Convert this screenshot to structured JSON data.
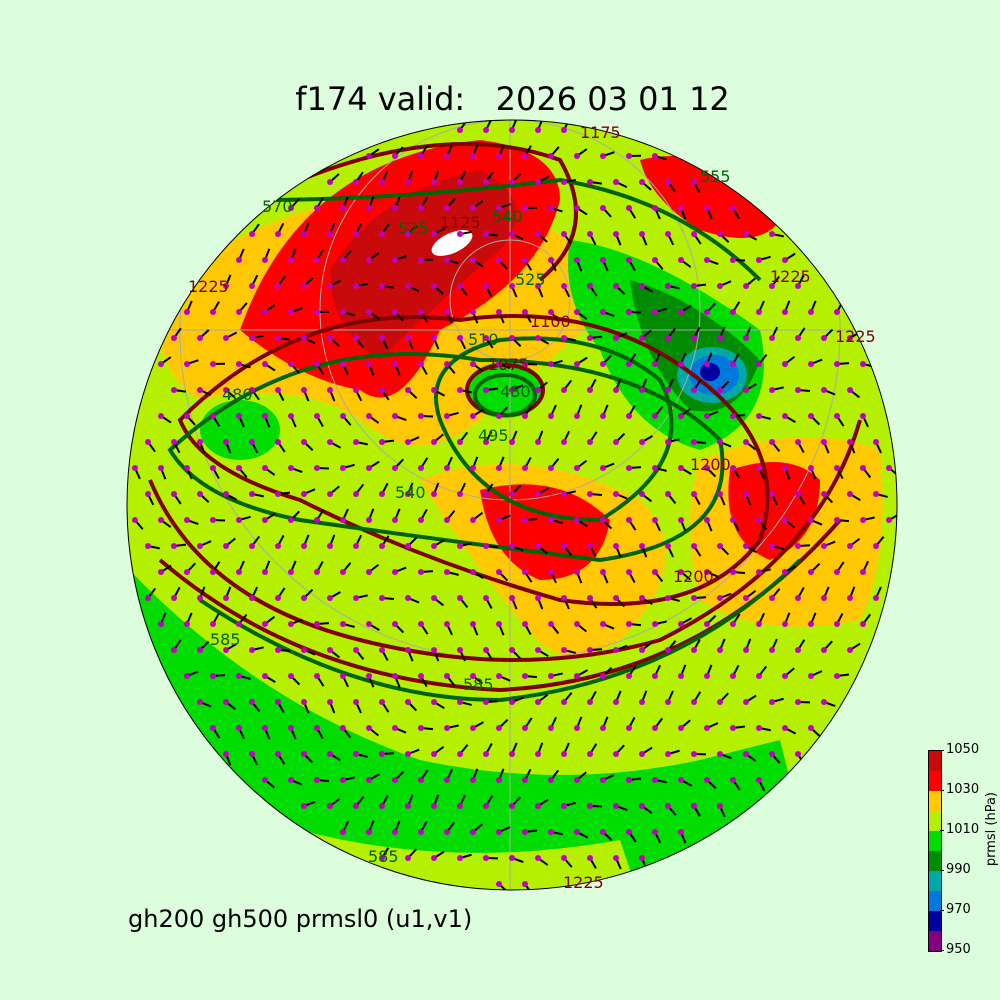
{
  "title": "f174 valid:   2026 03 01 12",
  "subtitle": "gh200 gh500 prmsl0 (u1,v1)",
  "colorbar": {
    "label": "prmsl (hPa)",
    "ticks": [
      "950",
      "970",
      "990",
      "1010",
      "1030",
      "1050"
    ],
    "levels": [
      950,
      960,
      970,
      980,
      990,
      1000,
      1010,
      1020,
      1030,
      1040,
      1050
    ],
    "colors": [
      "#800080",
      "#0000a0",
      "#0078dc",
      "#00a8a8",
      "#008c00",
      "#00dc00",
      "#b4f000",
      "#ffc800",
      "#ff0000",
      "#c80a0a"
    ]
  },
  "map": {
    "projection": "orthographic",
    "background": "#ddfedd",
    "gh200_color": "#800000",
    "gh500_color": "#006400",
    "wind_point_color": "#c000c0",
    "contour_labels": [
      {
        "text": "1175",
        "type": "gh200"
      },
      {
        "text": "555",
        "type": "gh500"
      },
      {
        "text": "570",
        "type": "gh500"
      },
      {
        "text": "1225",
        "type": "gh200"
      },
      {
        "text": "525",
        "type": "gh500"
      },
      {
        "text": "1125",
        "type": "gh200"
      },
      {
        "text": "540",
        "type": "gh500"
      },
      {
        "text": "525",
        "type": "gh500"
      },
      {
        "text": "1100",
        "type": "gh200"
      },
      {
        "text": "510",
        "type": "gh500"
      },
      {
        "text": "1075",
        "type": "gh200"
      },
      {
        "text": "480",
        "type": "gh500"
      },
      {
        "text": "495",
        "type": "gh500"
      },
      {
        "text": "1225",
        "type": "gh200"
      },
      {
        "text": "1225",
        "type": "gh200"
      },
      {
        "text": "480",
        "type": "gh500"
      },
      {
        "text": "540",
        "type": "gh500"
      },
      {
        "text": "1200",
        "type": "gh200"
      },
      {
        "text": "1200",
        "type": "gh200"
      },
      {
        "text": "585",
        "type": "gh500"
      },
      {
        "text": "585",
        "type": "gh500"
      },
      {
        "text": "585",
        "type": "gh500"
      },
      {
        "text": "1225",
        "type": "gh200"
      }
    ]
  }
}
